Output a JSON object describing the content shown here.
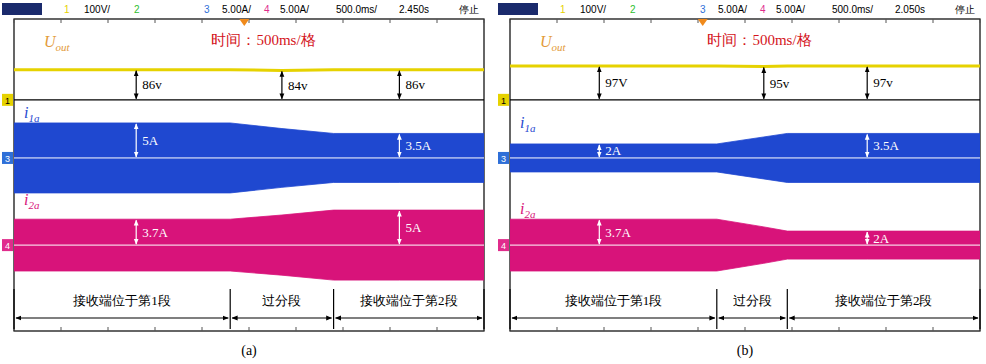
{
  "chart_data": [
    {
      "type": "envelope",
      "panel": "(a)",
      "header": {
        "status": "停止",
        "timebase": {
          "value": 0.5,
          "label": "500.0ms/"
        },
        "delay": {
          "value": 2.45,
          "label": "2.450s"
        }
      },
      "channels": [
        {
          "id": "1",
          "color": "#e6d200",
          "scale": {
            "value": 100,
            "label": "100V/"
          }
        },
        {
          "id": "2",
          "color": "#2fbf2f"
        },
        {
          "id": "3",
          "color": "#2e6fd8",
          "scale": {
            "value": 5,
            "label": "5.00A/"
          }
        },
        {
          "id": "4",
          "color": "#e02c8c",
          "scale": {
            "value": 5,
            "label": "5.00A/"
          }
        }
      ],
      "annotation": "时间：500ms/格",
      "xlim": [
        0,
        5
      ],
      "grid": false,
      "tick_labels": false,
      "segments": [
        {
          "label": "接收端位于第1段",
          "x": [
            0,
            2.3
          ]
        },
        {
          "label": "过分段",
          "x": [
            2.3,
            3.4
          ]
        },
        {
          "label": "接收端位于第2段",
          "x": [
            3.4,
            5
          ]
        }
      ],
      "x": [
        0,
        1.3,
        2.3,
        2.85,
        3.4,
        4.1,
        5
      ],
      "series": [
        {
          "name": "U",
          "name_sub": "out",
          "channel": "1",
          "type": "line",
          "color": "#e6d200",
          "values": [
            86,
            86,
            86,
            84,
            86,
            86,
            86
          ],
          "value_labels": [
            null,
            "86v",
            null,
            "84v",
            null,
            "86v",
            null
          ]
        },
        {
          "name": "i",
          "name_sub": "1a",
          "channel": "3",
          "type": "band",
          "color": "#1f48d0",
          "values": [
            5,
            5,
            5,
            4.2,
            3.5,
            3.5,
            3.5
          ],
          "value_labels": [
            null,
            "5A",
            null,
            null,
            null,
            "3.5A",
            null
          ]
        },
        {
          "name": "i",
          "name_sub": "2a",
          "channel": "4",
          "type": "band",
          "color": "#d8137a",
          "values": [
            3.7,
            3.7,
            3.7,
            4.3,
            5,
            5,
            5
          ],
          "value_labels": [
            null,
            "3.7A",
            null,
            null,
            null,
            "5A",
            null
          ]
        }
      ]
    },
    {
      "type": "envelope",
      "panel": "(b)",
      "header": {
        "status": "停止",
        "timebase": {
          "value": 0.5,
          "label": "500.0ms/"
        },
        "delay": {
          "value": 2.05,
          "label": "2.050s"
        }
      },
      "channels": [
        {
          "id": "1",
          "color": "#e6d200",
          "scale": {
            "value": 100,
            "label": "100V/"
          }
        },
        {
          "id": "2",
          "color": "#2fbf2f"
        },
        {
          "id": "3",
          "color": "#2e6fd8",
          "scale": {
            "value": 5,
            "label": "5.00A/"
          }
        },
        {
          "id": "4",
          "color": "#e02c8c",
          "scale": {
            "value": 5,
            "label": "5.00A/"
          }
        }
      ],
      "annotation": "时间：500ms/格",
      "xlim": [
        0,
        5
      ],
      "grid": false,
      "tick_labels": false,
      "segments": [
        {
          "label": "接收端位于第1段",
          "x": [
            0,
            2.2
          ]
        },
        {
          "label": "过分段",
          "x": [
            2.2,
            2.95
          ]
        },
        {
          "label": "接收端位于第2段",
          "x": [
            2.95,
            5
          ]
        }
      ],
      "x": [
        0,
        0.95,
        2.2,
        2.7,
        2.95,
        3.8,
        5
      ],
      "series": [
        {
          "name": "U",
          "name_sub": "out",
          "channel": "1",
          "type": "line",
          "color": "#e6d200",
          "values": [
            97,
            97,
            97,
            95,
            97,
            97,
            97
          ],
          "value_labels": [
            null,
            "97V",
            null,
            "95v",
            null,
            "97v",
            null
          ]
        },
        {
          "name": "i",
          "name_sub": "1a",
          "channel": "3",
          "type": "band",
          "color": "#1f48d0",
          "values": [
            2,
            2,
            2,
            3,
            3.5,
            3.5,
            3.5
          ],
          "value_labels": [
            null,
            "2A",
            null,
            null,
            null,
            "3.5A",
            null
          ]
        },
        {
          "name": "i",
          "name_sub": "2a",
          "channel": "4",
          "type": "band",
          "color": "#d8137a",
          "values": [
            3.7,
            3.7,
            3.7,
            2.6,
            2,
            2,
            2
          ],
          "value_labels": [
            null,
            "3.7A",
            null,
            null,
            null,
            "2A",
            null
          ]
        }
      ]
    }
  ]
}
